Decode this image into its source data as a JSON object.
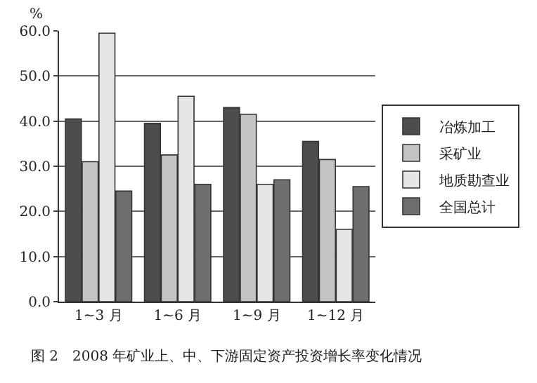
{
  "chart_data": {
    "type": "bar",
    "ylabel": "%",
    "categories": [
      "1~3 月",
      "1~6 月",
      "1~9 月",
      "1~12 月"
    ],
    "series": [
      {
        "name": "冶炼加工",
        "color": "#4d4d4d",
        "values": [
          40.5,
          39.5,
          43,
          35.5
        ]
      },
      {
        "name": "采矿业",
        "color": "#c4c4c4",
        "values": [
          31,
          32.5,
          41.5,
          31.5
        ]
      },
      {
        "name": "地质勘查业",
        "color": "#e6e6e6",
        "values": [
          59.5,
          45.5,
          26,
          16
        ]
      },
      {
        "name": "全国总计",
        "color": "#6e6e6e",
        "values": [
          24.5,
          26,
          27,
          25.5
        ]
      }
    ],
    "ylim": [
      0,
      60
    ],
    "yticks": [
      {
        "value": 0,
        "label": "0.0"
      },
      {
        "value": 10,
        "label": "10.0"
      },
      {
        "value": 20,
        "label": "20.0"
      },
      {
        "value": 30,
        "label": "30.0"
      },
      {
        "value": 40,
        "label": "40.0"
      },
      {
        "value": 50,
        "label": "50.0"
      },
      {
        "value": 60,
        "label": "60.0"
      }
    ],
    "grid": "y",
    "legend": "right",
    "annotations": [
      "图 2　2008 年矿业上、中、下游固定资产投资增长率变化情况"
    ]
  }
}
